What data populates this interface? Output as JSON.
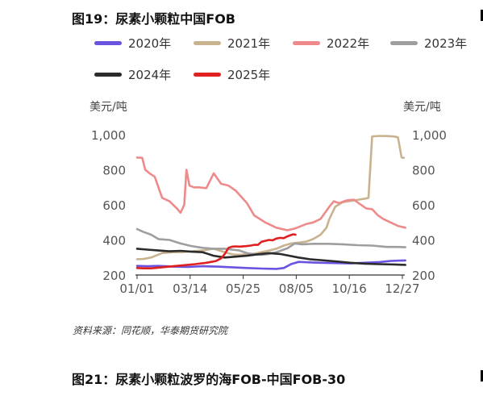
{
  "figure_title": "图19：尿素小颗粒中国FOB",
  "next_figure_title": "图21：尿素小颗粒波罗的海FOB-中国FOB-30",
  "source_note": "资料来源：同花顺，华泰期货研究院",
  "chart_data": {
    "type": "line",
    "left_unit": "美元/吨",
    "right_unit": "美元/吨",
    "ylim": [
      200,
      1000
    ],
    "y_ticks": [
      "200",
      "400",
      "600",
      "800",
      "1,000"
    ],
    "x_ticks": [
      "01/01",
      "03/14",
      "05/25",
      "08/05",
      "10/16",
      "12/27"
    ],
    "x_tick_days": [
      1,
      73,
      145,
      217,
      289,
      361
    ],
    "legend_placement": "top",
    "grid": false,
    "series": [
      {
        "name": "2020年",
        "color": "#6B52E0",
        "x": [
          1,
          15,
          30,
          50,
          70,
          90,
          110,
          130,
          150,
          170,
          190,
          200,
          210,
          220,
          235,
          250,
          270,
          290,
          310,
          330,
          345,
          355,
          365
        ],
        "y": [
          252,
          250,
          252,
          248,
          246,
          250,
          248,
          244,
          240,
          237,
          235,
          240,
          262,
          275,
          272,
          270,
          268,
          266,
          270,
          274,
          280,
          282,
          283
        ]
      },
      {
        "name": "2021年",
        "color": "#C9B38F",
        "x": [
          1,
          10,
          20,
          35,
          50,
          60,
          75,
          90,
          105,
          120,
          130,
          140,
          150,
          160,
          170,
          180,
          190,
          200,
          210,
          220,
          230,
          240,
          250,
          258,
          262,
          270,
          280,
          290,
          300,
          305,
          310,
          315,
          320,
          330,
          340,
          350,
          355,
          360,
          363
        ],
        "y": [
          290,
          292,
          300,
          325,
          330,
          330,
          335,
          340,
          350,
          330,
          318,
          315,
          320,
          322,
          330,
          340,
          350,
          368,
          380,
          385,
          390,
          405,
          430,
          470,
          520,
          590,
          615,
          622,
          628,
          632,
          635,
          640,
          990,
          993,
          992,
          990,
          985,
          870,
          868
        ]
      },
      {
        "name": "2022年",
        "color": "#EF8A8A",
        "x": [
          1,
          8,
          12,
          18,
          25,
          35,
          45,
          55,
          60,
          65,
          68,
          72,
          78,
          85,
          95,
          105,
          115,
          125,
          135,
          150,
          160,
          175,
          190,
          205,
          215,
          230,
          240,
          250,
          262,
          268,
          275,
          285,
          295,
          305,
          312,
          320,
          328,
          335,
          345,
          355,
          365
        ],
        "y": [
          870,
          868,
          800,
          780,
          760,
          640,
          620,
          580,
          555,
          600,
          800,
          710,
          700,
          700,
          695,
          780,
          720,
          710,
          680,
          610,
          540,
          500,
          470,
          455,
          465,
          490,
          500,
          520,
          590,
          620,
          610,
          625,
          630,
          600,
          580,
          575,
          540,
          520,
          500,
          480,
          470
        ]
      },
      {
        "name": "2023年",
        "color": "#9E9E9E",
        "x": [
          1,
          10,
          20,
          30,
          45,
          60,
          75,
          90,
          105,
          120,
          130,
          140,
          150,
          160,
          170,
          180,
          190,
          200,
          205,
          215,
          225,
          240,
          260,
          280,
          300,
          320,
          340,
          355,
          365
        ],
        "y": [
          462,
          445,
          430,
          405,
          400,
          380,
          365,
          355,
          350,
          350,
          345,
          340,
          325,
          318,
          315,
          320,
          330,
          345,
          352,
          380,
          375,
          378,
          378,
          375,
          370,
          368,
          360,
          360,
          358
        ]
      },
      {
        "name": "2024年",
        "color": "#2B2B2B",
        "x": [
          1,
          15,
          30,
          45,
          60,
          75,
          90,
          105,
          120,
          135,
          150,
          165,
          180,
          195,
          205,
          220,
          235,
          250,
          270,
          290,
          310,
          330,
          350,
          365
        ],
        "y": [
          350,
          345,
          340,
          335,
          338,
          333,
          330,
          310,
          300,
          305,
          310,
          318,
          325,
          320,
          312,
          300,
          290,
          285,
          278,
          270,
          265,
          262,
          260,
          258
        ]
      },
      {
        "name": "2025年",
        "color": "#E02020",
        "x": [
          1,
          10,
          20,
          35,
          50,
          65,
          80,
          95,
          108,
          115,
          120,
          125,
          130,
          135,
          140,
          150,
          155,
          160,
          165,
          170,
          175,
          180,
          185,
          190,
          195,
          200,
          205,
          210,
          213,
          216
        ],
        "y": [
          240,
          238,
          238,
          244,
          250,
          256,
          262,
          270,
          280,
          295,
          320,
          355,
          362,
          363,
          362,
          365,
          368,
          372,
          372,
          390,
          395,
          400,
          398,
          408,
          412,
          410,
          420,
          428,
          432,
          430
        ]
      }
    ]
  }
}
